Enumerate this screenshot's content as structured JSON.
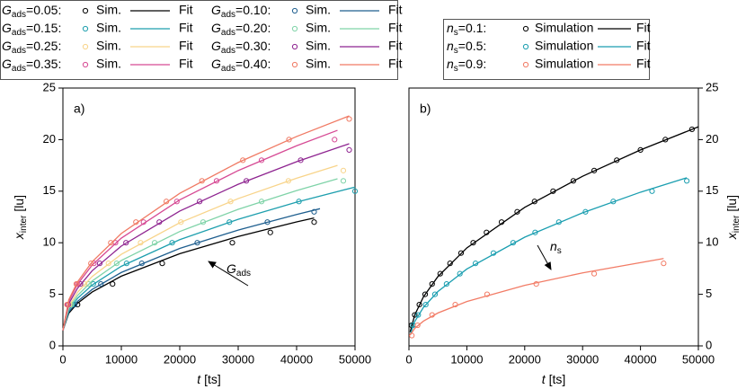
{
  "chart_data": [
    {
      "type": "scatter",
      "panel_label": "a)",
      "x_label_symbol": "t",
      "x_label_unit": "[ts]",
      "y_label_symbol": "x",
      "y_label_sub": "inter",
      "y_label_unit": "[lu]",
      "y_axis_side": "left",
      "xlim": [
        0,
        50000
      ],
      "xticks": [
        0,
        10000,
        20000,
        30000,
        40000,
        50000
      ],
      "ylim": [
        0,
        25
      ],
      "yticks": [
        0,
        5,
        10,
        15,
        20,
        25
      ],
      "legend_symbol": "G",
      "legend_sub": "ads",
      "sim_label": "Sim.",
      "fit_label": "Fit",
      "annotation_symbol": "G",
      "annotation_sub": "ads",
      "series": [
        {
          "name": "=0.05:",
          "color": "#000000",
          "x": [
            2500,
            8500,
            17000,
            29000,
            35500,
            43000
          ],
          "values": [
            4,
            6,
            8,
            10,
            11,
            12
          ],
          "fit_x": [
            0,
            1000,
            2500,
            5000,
            10000,
            20000,
            30000,
            40000,
            43000
          ],
          "fit_values": [
            1.5,
            3.16,
            4.13,
            5.22,
            6.76,
            8.94,
            10.61,
            12.02,
            12.4
          ]
        },
        {
          "name": "=0.10:",
          "color": "#1f5f8f",
          "x": [
            2000,
            6500,
            13500,
            23000,
            35000,
            43000
          ],
          "values": [
            4,
            6,
            8,
            10,
            12,
            13
          ],
          "fit_x": [
            0,
            1000,
            2500,
            5000,
            10000,
            20000,
            30000,
            40000,
            44000
          ],
          "fit_values": [
            1.5,
            3.28,
            4.31,
            5.47,
            7.12,
            9.45,
            11.23,
            12.74,
            13.3
          ]
        },
        {
          "name": "=0.15:",
          "color": "#1e9fae",
          "x": [
            1600,
            5200,
            10900,
            18700,
            28500,
            40400,
            50000
          ],
          "values": [
            4,
            6,
            8,
            10,
            12,
            14,
            15
          ],
          "fit_x": [
            0,
            1000,
            2500,
            5000,
            10000,
            20000,
            30000,
            40000,
            50000
          ],
          "fit_values": [
            1.5,
            3.47,
            4.61,
            5.9,
            7.72,
            10.3,
            12.27,
            13.94,
            15.4
          ]
        },
        {
          "name": "=0.20:",
          "color": "#7fd3a8",
          "x": [
            1400,
            4400,
            9200,
            15700,
            24000,
            34000,
            48000
          ],
          "values": [
            4,
            6,
            8,
            10,
            12,
            14,
            16
          ],
          "fit_x": [
            0,
            1000,
            2500,
            5000,
            10000,
            20000,
            30000,
            40000,
            47000
          ],
          "fit_values": [
            1.5,
            3.64,
            4.89,
            6.29,
            8.28,
            11.09,
            13.24,
            15.06,
            16.2
          ]
        },
        {
          "name": "=0.25:",
          "color": "#f8d48a",
          "x": [
            1150,
            3700,
            7800,
            13300,
            20200,
            28700,
            38600,
            48000
          ],
          "values": [
            4,
            6,
            8,
            10,
            12,
            14,
            16,
            17
          ],
          "fit_x": [
            0,
            1000,
            2500,
            5000,
            10000,
            20000,
            30000,
            40000,
            47000
          ],
          "fit_values": [
            1.5,
            3.83,
            5.19,
            6.72,
            8.88,
            11.94,
            14.28,
            16.26,
            17.5
          ]
        },
        {
          "name": "=0.30:",
          "color": "#8e2490",
          "x": [
            900,
            3000,
            6300,
            10800,
            16500,
            23400,
            31400,
            40700,
            49000
          ],
          "values": [
            4,
            6,
            8,
            10,
            12,
            14,
            16,
            18,
            19
          ],
          "fit_x": [
            0,
            1000,
            2500,
            5000,
            10000,
            20000,
            30000,
            40000,
            49000
          ],
          "fit_values": [
            1.5,
            4.09,
            5.59,
            7.28,
            9.68,
            13.07,
            15.67,
            17.86,
            19.6
          ]
        },
        {
          "name": "=0.35:",
          "color": "#d64a94",
          "x": [
            800,
            2500,
            5300,
            9000,
            13800,
            19500,
            26300,
            34000,
            46500
          ],
          "values": [
            4,
            6,
            8,
            10,
            12,
            14,
            16,
            18,
            20
          ],
          "fit_x": [
            0,
            1000,
            2500,
            5000,
            10000,
            20000,
            30000,
            40000,
            47000
          ],
          "fit_values": [
            1.5,
            4.33,
            5.98,
            7.83,
            10.45,
            14.16,
            17.0,
            19.4,
            20.9
          ]
        },
        {
          "name": "=0.40:",
          "color": "#f07a64",
          "x": [
            700,
            2300,
            4800,
            8200,
            12500,
            17700,
            23800,
            30800,
            38700,
            49000
          ],
          "values": [
            4,
            6,
            8,
            10,
            12,
            14,
            16,
            18,
            20,
            22
          ],
          "fit_x": [
            0,
            1000,
            2500,
            5000,
            10000,
            20000,
            30000,
            40000,
            49000
          ],
          "fit_values": [
            1.5,
            4.47,
            6.2,
            8.15,
            10.9,
            14.79,
            17.78,
            20.3,
            22.3
          ]
        }
      ]
    },
    {
      "type": "scatter",
      "panel_label": "b)",
      "x_label_symbol": "t",
      "x_label_unit": "[ts]",
      "y_label_symbol": "x",
      "y_label_sub": "inter",
      "y_label_unit": "[lu]",
      "y_axis_side": "right",
      "xlim": [
        0,
        50000
      ],
      "xticks": [
        0,
        10000,
        20000,
        30000,
        40000,
        50000
      ],
      "ylim": [
        0,
        25
      ],
      "yticks": [
        0,
        5,
        10,
        15,
        20,
        25
      ],
      "legend_symbol": "n",
      "legend_sub": "s",
      "sim_label": "Simulation",
      "fit_label": "Fit",
      "annotation_symbol": "n",
      "annotation_sub": "s",
      "series": [
        {
          "name": "=0.1:",
          "color": "#000000",
          "x": [
            450,
            1000,
            1800,
            2800,
            4000,
            5400,
            7100,
            9000,
            11100,
            13400,
            16000,
            18700,
            21700,
            24900,
            28400,
            32000,
            35900,
            40000,
            44300,
            48900
          ],
          "values": [
            2,
            3,
            4,
            5,
            6,
            7,
            8,
            9,
            10,
            11,
            12,
            13,
            14,
            15,
            16,
            17,
            18,
            19,
            20,
            21
          ],
          "fit_x": [
            200,
            1000,
            2500,
            5000,
            10000,
            20000,
            30000,
            40000,
            50000
          ],
          "fit_values": [
            1.34,
            3.0,
            4.75,
            6.72,
            9.5,
            13.43,
            16.45,
            19.0,
            21.24
          ]
        },
        {
          "name": "=0.5:",
          "color": "#1a9eb0",
          "x": [
            700,
            1600,
            2900,
            4500,
            6500,
            8800,
            11500,
            14600,
            18000,
            21800,
            25900,
            30500,
            35300,
            42000,
            48000
          ],
          "values": [
            2,
            3,
            4,
            5,
            6,
            7,
            8,
            9,
            10,
            11,
            12,
            13,
            14,
            15,
            16
          ],
          "fit_x": [
            200,
            1000,
            2500,
            5000,
            10000,
            20000,
            30000,
            40000,
            48000
          ],
          "fit_values": [
            1.05,
            2.36,
            3.73,
            5.27,
            7.45,
            10.54,
            12.9,
            14.9,
            16.3
          ]
        },
        {
          "name": "=0.9:",
          "color": "#f27c66",
          "x": [
            500,
            1500,
            4000,
            8000,
            13500,
            22000,
            32000,
            44000
          ],
          "values": [
            1,
            2,
            3,
            4,
            5,
            6,
            7,
            8
          ],
          "fit_x": [
            200,
            1000,
            2500,
            5000,
            10000,
            20000,
            30000,
            44000
          ],
          "fit_values": [
            1.04,
            1.7,
            2.4,
            3.19,
            4.3,
            5.87,
            7.08,
            8.47
          ]
        }
      ]
    }
  ]
}
